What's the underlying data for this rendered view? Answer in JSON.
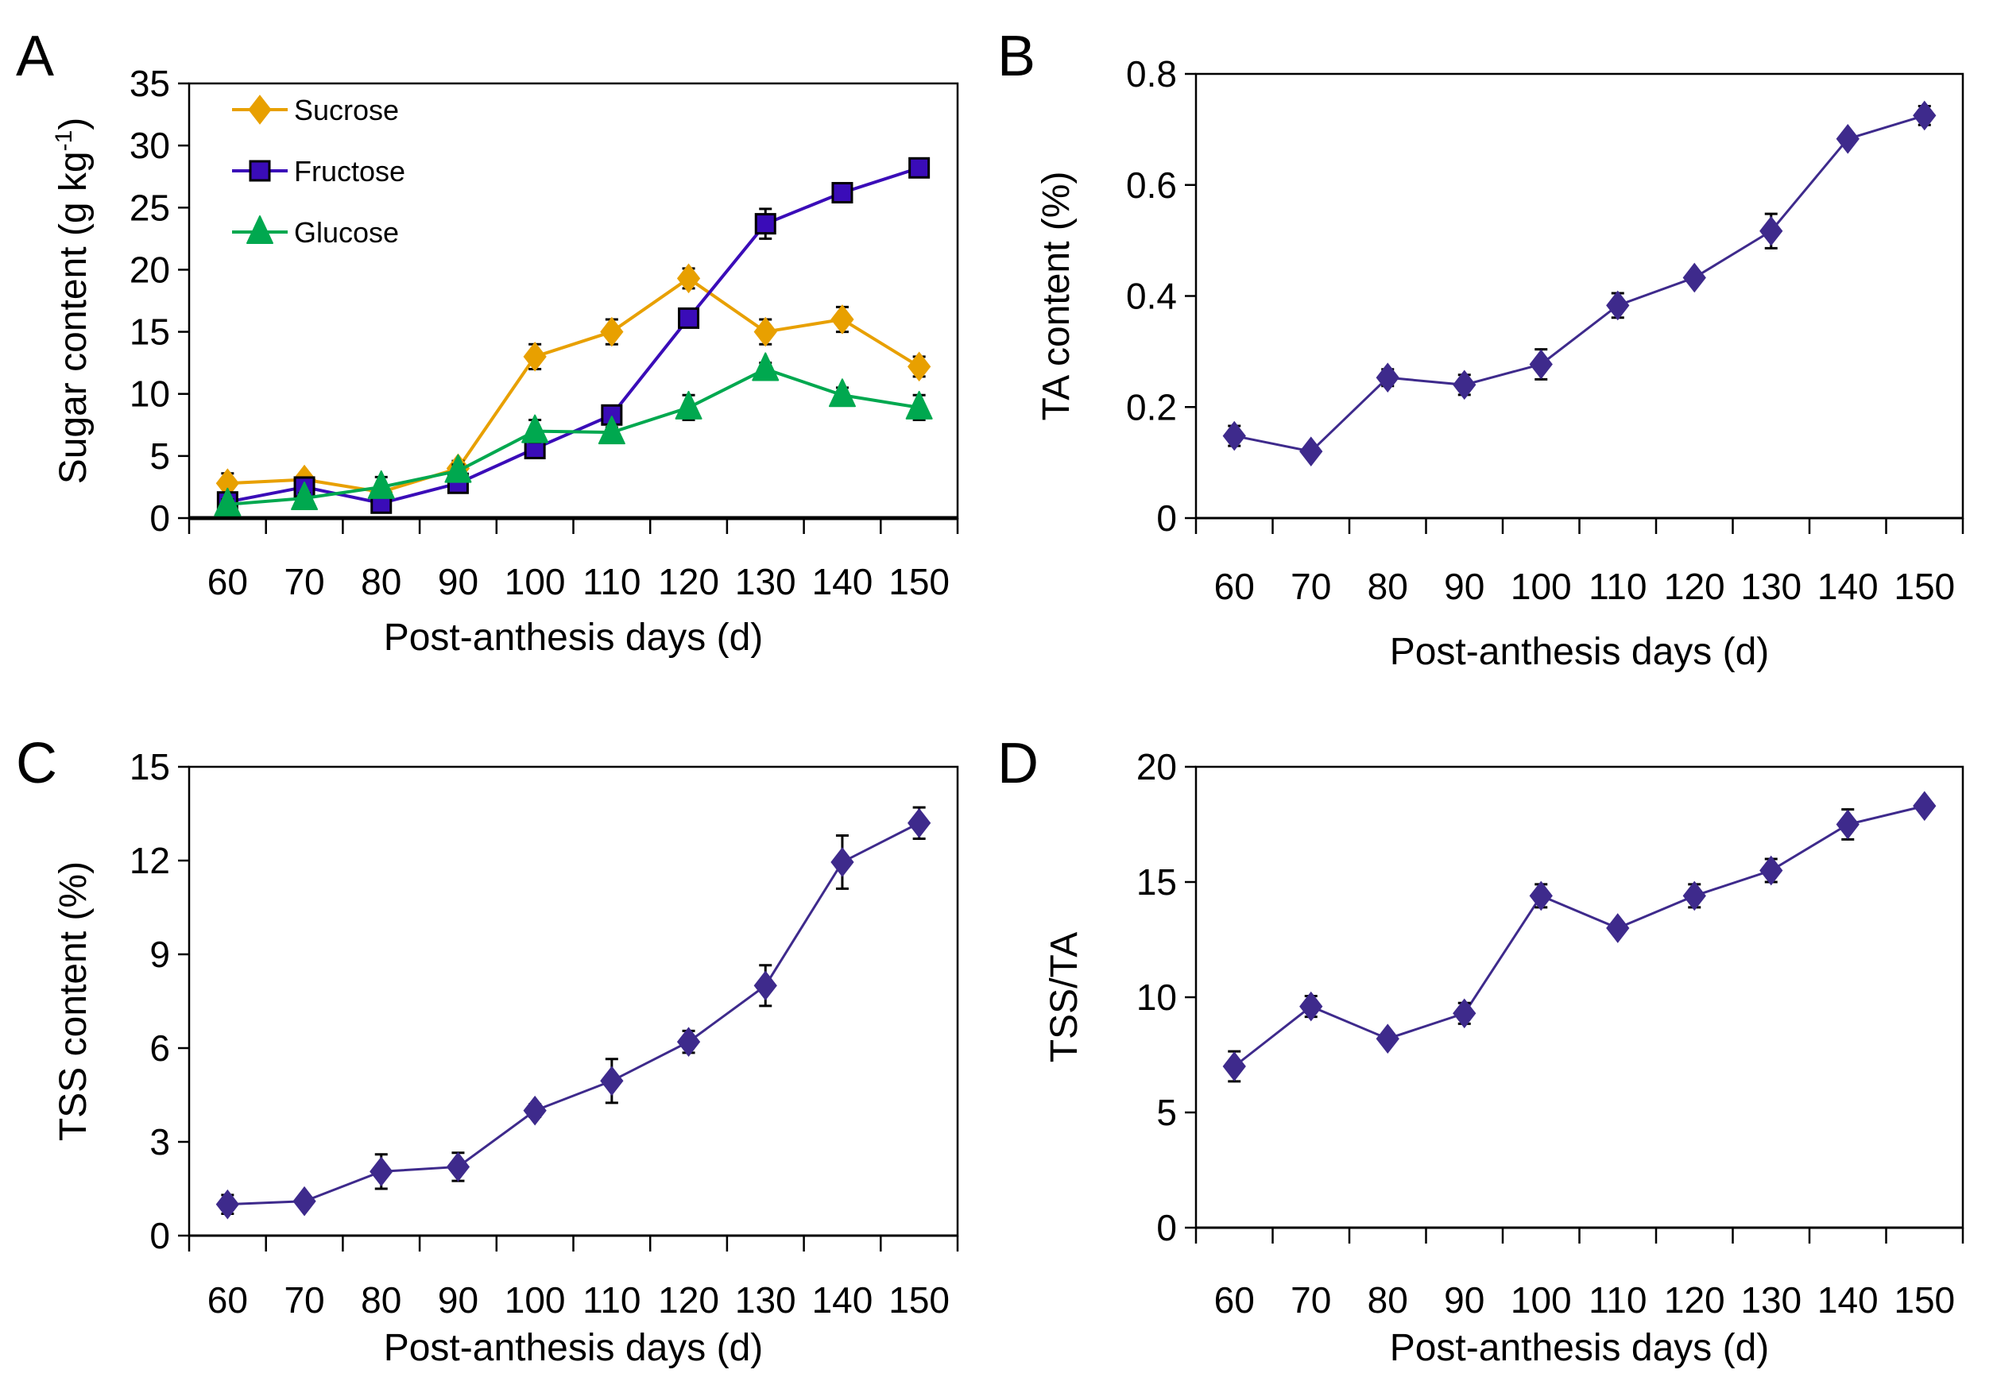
{
  "chart_data": [
    {
      "panel": "A",
      "type": "line",
      "title": "",
      "xlabel": "Post-anthesis days (d)",
      "ylabel": "Sugar content (g kg-1)",
      "ylabel_parts": {
        "main": "Sugar content (g kg",
        "sup": "-1",
        "end": ")"
      },
      "categories": [
        "60",
        "70",
        "80",
        "90",
        "100",
        "110",
        "120",
        "130",
        "140",
        "150"
      ],
      "ylim": [
        0,
        35
      ],
      "yticks": [
        0,
        5,
        10,
        15,
        20,
        25,
        30,
        35
      ],
      "grid": false,
      "legend": "top-left",
      "series": [
        {
          "name": "Sucrose",
          "color": "#E8A000",
          "marker": "diamond",
          "values": [
            2.8,
            3.1,
            2.1,
            4.0,
            13.0,
            15.0,
            19.3,
            15.0,
            16.0,
            12.2
          ],
          "errors": [
            0.8,
            0.4,
            0.5,
            0.6,
            1.0,
            1.0,
            0.8,
            1.0,
            1.0,
            0.8
          ]
        },
        {
          "name": "Fructose",
          "color": "#3A0CB8",
          "marker": "square",
          "values": [
            1.3,
            2.5,
            1.2,
            2.8,
            5.6,
            8.3,
            16.1,
            23.7,
            26.2,
            28.2
          ],
          "errors": [
            0.6,
            0.4,
            0.3,
            0.4,
            0.5,
            0.6,
            0.7,
            1.2,
            0.5,
            0.5
          ]
        },
        {
          "name": "Glucose",
          "color": "#00A84F",
          "marker": "triangle",
          "values": [
            1.1,
            1.6,
            2.5,
            3.8,
            7.0,
            6.9,
            8.9,
            12.0,
            9.9,
            8.9
          ],
          "errors": [
            0.4,
            0.4,
            0.8,
            0.5,
            0.9,
            0.4,
            1.0,
            0.5,
            0.6,
            1.0
          ]
        }
      ]
    },
    {
      "panel": "B",
      "type": "line",
      "title": "",
      "xlabel": "Post-anthesis days (d)",
      "ylabel": "TA content (%)",
      "categories": [
        "60",
        "70",
        "80",
        "90",
        "100",
        "110",
        "120",
        "130",
        "140",
        "150"
      ],
      "ylim": [
        0,
        0.8
      ],
      "yticks": [
        0,
        0.2,
        0.4,
        0.6,
        0.8
      ],
      "ytick_labels": [
        "0",
        "0.2",
        "0.4",
        "0.6",
        "0.8"
      ],
      "grid": false,
      "legend": "none",
      "series": [
        {
          "name": "TA content",
          "color": "#3E2A8C",
          "marker": "diamond",
          "values": [
            0.148,
            0.12,
            0.253,
            0.24,
            0.277,
            0.383,
            0.433,
            0.517,
            0.683,
            0.725
          ],
          "errors": [
            0.018,
            0.006,
            0.015,
            0.018,
            0.027,
            0.022,
            0.01,
            0.031,
            0.01,
            0.017
          ]
        }
      ]
    },
    {
      "panel": "C",
      "type": "line",
      "title": "",
      "xlabel": "Post-anthesis days (d)",
      "ylabel": "TSS content (%)",
      "categories": [
        "60",
        "70",
        "80",
        "90",
        "100",
        "110",
        "120",
        "130",
        "140",
        "150"
      ],
      "ylim": [
        0,
        15
      ],
      "yticks": [
        0,
        3,
        6,
        9,
        12,
        15
      ],
      "grid": false,
      "legend": "none",
      "series": [
        {
          "name": "TSS content",
          "color": "#3E2A8C",
          "marker": "diamond",
          "values": [
            1.0,
            1.1,
            2.05,
            2.2,
            4.0,
            4.95,
            6.2,
            8.0,
            11.95,
            13.2
          ],
          "errors": [
            0.3,
            0.15,
            0.55,
            0.45,
            0.2,
            0.7,
            0.35,
            0.65,
            0.85,
            0.5
          ]
        }
      ]
    },
    {
      "panel": "D",
      "type": "line",
      "title": "",
      "xlabel": "Post-anthesis days (d)",
      "ylabel": "TSS/TA",
      "categories": [
        "60",
        "70",
        "80",
        "90",
        "100",
        "110",
        "120",
        "130",
        "140",
        "150"
      ],
      "ylim": [
        0,
        20
      ],
      "yticks": [
        0,
        5,
        10,
        15,
        20
      ],
      "grid": false,
      "legend": "none",
      "series": [
        {
          "name": "TSS/TA",
          "color": "#3E2A8C",
          "marker": "diamond",
          "values": [
            7.0,
            9.6,
            8.2,
            9.3,
            14.4,
            13.0,
            14.4,
            15.5,
            17.5,
            18.3
          ],
          "errors": [
            0.65,
            0.45,
            0.2,
            0.45,
            0.5,
            0.2,
            0.5,
            0.5,
            0.65,
            0.2
          ]
        }
      ]
    }
  ]
}
